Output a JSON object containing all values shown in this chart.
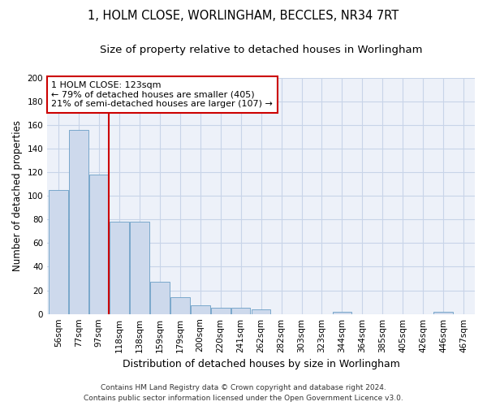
{
  "title": "1, HOLM CLOSE, WORLINGHAM, BECCLES, NR34 7RT",
  "subtitle": "Size of property relative to detached houses in Worlingham",
  "xlabel": "Distribution of detached houses by size in Worlingham",
  "ylabel": "Number of detached properties",
  "categories": [
    "56sqm",
    "77sqm",
    "97sqm",
    "118sqm",
    "138sqm",
    "159sqm",
    "179sqm",
    "200sqm",
    "220sqm",
    "241sqm",
    "262sqm",
    "282sqm",
    "303sqm",
    "323sqm",
    "344sqm",
    "364sqm",
    "385sqm",
    "405sqm",
    "426sqm",
    "446sqm",
    "467sqm"
  ],
  "values": [
    105,
    156,
    118,
    78,
    78,
    27,
    14,
    7,
    5,
    5,
    4,
    0,
    0,
    0,
    2,
    0,
    0,
    0,
    0,
    2,
    0
  ],
  "bar_color": "#cdd9ec",
  "bar_edge_color": "#6a9ec5",
  "vline_color": "#cc0000",
  "vline_x_index": 3,
  "annotation_text": "1 HOLM CLOSE: 123sqm\n← 79% of detached houses are smaller (405)\n21% of semi-detached houses are larger (107) →",
  "annotation_box_color": "#ffffff",
  "annotation_box_edge": "#cc0000",
  "ylim": [
    0,
    200
  ],
  "yticks": [
    0,
    20,
    40,
    60,
    80,
    100,
    120,
    140,
    160,
    180,
    200
  ],
  "grid_color": "#c8d4e8",
  "bg_color": "#edf1f9",
  "footnote": "Contains HM Land Registry data © Crown copyright and database right 2024.\nContains public sector information licensed under the Open Government Licence v3.0.",
  "title_fontsize": 10.5,
  "subtitle_fontsize": 9.5,
  "xlabel_fontsize": 9,
  "ylabel_fontsize": 8.5,
  "tick_fontsize": 7.5,
  "annotation_fontsize": 8,
  "footnote_fontsize": 6.5
}
